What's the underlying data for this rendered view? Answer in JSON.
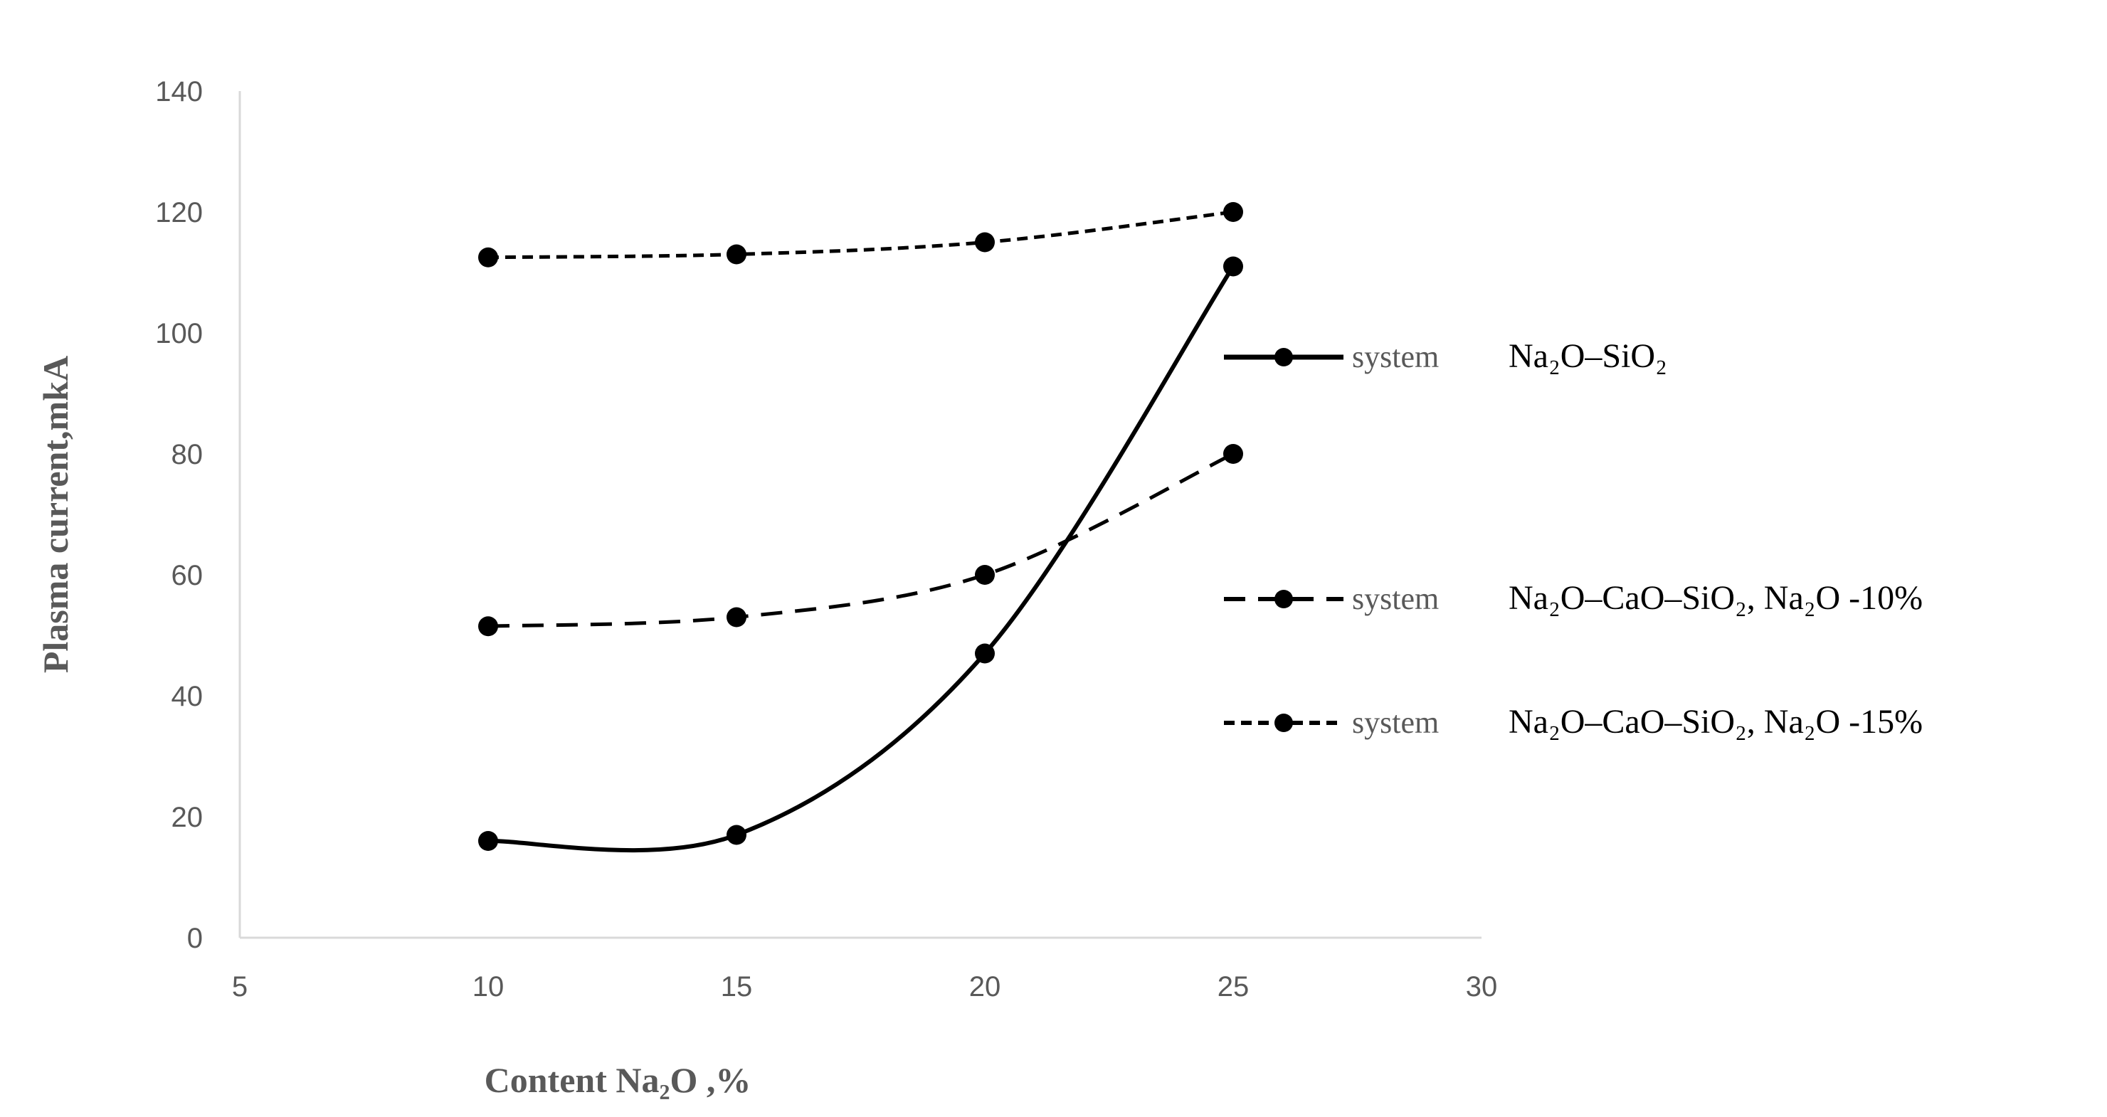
{
  "chart_data": {
    "type": "line",
    "xlabel": "Content  Na₂O ,%",
    "ylabel": "Plasma current,mkA",
    "xlim": [
      5,
      30
    ],
    "ylim": [
      0,
      140
    ],
    "xticks": [
      "5",
      "10",
      "15",
      "20",
      "25",
      "30"
    ],
    "yticks": [
      "0",
      "20",
      "40",
      "60",
      "80",
      "100",
      "120",
      "140"
    ],
    "grid": false,
    "legend_position": "right",
    "x": [
      10,
      15,
      20,
      25
    ],
    "series": [
      {
        "name": "system  Na₂O–SiO₂",
        "legend_prefix": "system",
        "legend_name": "Na₂O–SiO₂",
        "line_style": "solid",
        "color": "#000000",
        "values": [
          16,
          17,
          47,
          111
        ]
      },
      {
        "name": "system  Na₂O–CaO–SiO₂, Na₂O -10%",
        "legend_prefix": "system",
        "legend_name": "Na₂O–CaO–SiO₂, Na₂O -10%",
        "line_style": "dashed",
        "color": "#000000",
        "values": [
          51.5,
          53,
          60,
          80
        ]
      },
      {
        "name": "system  Na₂O–CaO–SiO₂, Na₂O -15%",
        "legend_prefix": "system",
        "legend_name": "Na₂O–CaO–SiO₂, Na₂O -15%",
        "line_style": "short-dashed",
        "color": "#000000",
        "values": [
          112.5,
          113,
          115,
          120
        ]
      }
    ]
  }
}
